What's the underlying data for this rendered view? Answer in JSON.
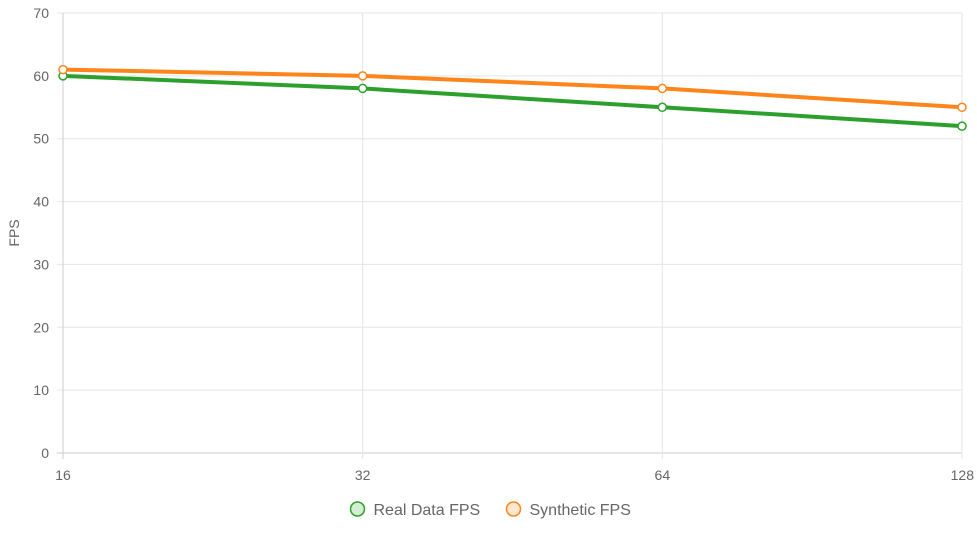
{
  "chart_data": {
    "type": "line",
    "title": "",
    "xlabel": "",
    "ylabel": "FPS",
    "x_scale": "log2",
    "x": [
      16,
      32,
      64,
      128
    ],
    "x_tick_labels": [
      "16",
      "32",
      "64",
      "128"
    ],
    "ylim": [
      0,
      70
    ],
    "y_ticks": [
      0,
      10,
      20,
      30,
      40,
      50,
      60,
      70
    ],
    "y_tick_labels": [
      "0",
      "10",
      "20",
      "30",
      "40",
      "50",
      "60",
      "70"
    ],
    "grid": true,
    "legend_position": "bottom",
    "series": [
      {
        "name": "Real Data FPS",
        "values": [
          60,
          58,
          55,
          52
        ],
        "color": "#2ca02c",
        "fill": "rgba(44,160,44,0.2)"
      },
      {
        "name": "Synthetic FPS",
        "values": [
          61,
          60,
          58,
          55
        ],
        "color": "#ff851b",
        "fill": "rgba(255,133,27,0.2)"
      }
    ]
  }
}
